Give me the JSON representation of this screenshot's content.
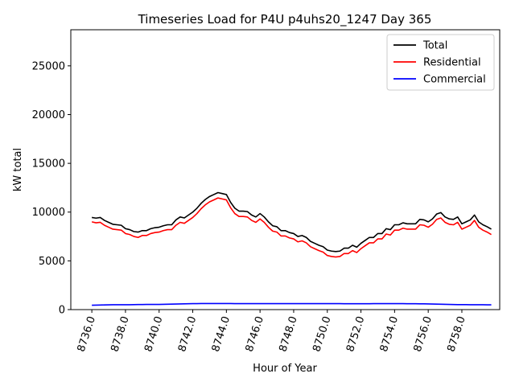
{
  "chart_data": {
    "type": "line",
    "title": "Timeseries Load for P4U p4uhs20_1247  Day 365",
    "xlabel": "Hour of Year",
    "ylabel": "kW total",
    "xlim": [
      8734.75,
      8760.25
    ],
    "ylim": [
      0,
      28700
    ],
    "xticks": [
      8736,
      8738,
      8740,
      8742,
      8744,
      8746,
      8748,
      8750,
      8752,
      8754,
      8756,
      8758
    ],
    "xtick_labels": [
      "8736.0",
      "8738.0",
      "8740.0",
      "8742.0",
      "8744.0",
      "8746.0",
      "8748.0",
      "8750.0",
      "8752.0",
      "8754.0",
      "8756.0",
      "8758.0"
    ],
    "yticks": [
      0,
      5000,
      10000,
      15000,
      20000,
      25000
    ],
    "ytick_labels": [
      "0",
      "5000",
      "10000",
      "15000",
      "20000",
      "25000"
    ],
    "grid": false,
    "legend_position": "top-right",
    "x_start": 8736.0,
    "x_step": 0.25,
    "series": [
      {
        "name": "Total",
        "color": "#000000",
        "values": [
          9450,
          9380,
          9450,
          9150,
          8950,
          8750,
          8700,
          8650,
          8300,
          8200,
          8000,
          7950,
          8100,
          8100,
          8300,
          8400,
          8450,
          8600,
          8700,
          8700,
          9200,
          9500,
          9400,
          9700,
          10000,
          10400,
          10900,
          11300,
          11600,
          11800,
          12000,
          11900,
          11800,
          11000,
          10400,
          10100,
          10100,
          10050,
          9700,
          9500,
          9850,
          9500,
          9000,
          8600,
          8500,
          8100,
          8100,
          7900,
          7800,
          7500,
          7600,
          7400,
          7000,
          6800,
          6600,
          6450,
          6100,
          6000,
          5950,
          6000,
          6300,
          6300,
          6600,
          6400,
          6800,
          7100,
          7400,
          7400,
          7800,
          7800,
          8300,
          8200,
          8700,
          8700,
          8900,
          8800,
          8800,
          8800,
          9250,
          9200,
          9000,
          9300,
          9800,
          9950,
          9500,
          9300,
          9250,
          9500,
          8800,
          9000,
          9200,
          9700,
          9000,
          8700,
          8500,
          8250
        ]
      },
      {
        "name": "Residential",
        "color": "#ff0000",
        "values": [
          9000,
          8900,
          8950,
          8650,
          8450,
          8250,
          8200,
          8150,
          7800,
          7700,
          7500,
          7400,
          7600,
          7600,
          7800,
          7900,
          7950,
          8100,
          8200,
          8200,
          8650,
          8950,
          8850,
          9150,
          9450,
          9850,
          10350,
          10750,
          11050,
          11250,
          11450,
          11350,
          11250,
          10450,
          9850,
          9550,
          9550,
          9500,
          9150,
          8950,
          9300,
          8950,
          8450,
          8050,
          7950,
          7550,
          7550,
          7350,
          7250,
          6950,
          7050,
          6850,
          6450,
          6250,
          6050,
          5900,
          5550,
          5450,
          5400,
          5450,
          5750,
          5750,
          6050,
          5850,
          6250,
          6550,
          6850,
          6850,
          7250,
          7250,
          7750,
          7650,
          8150,
          8150,
          8350,
          8250,
          8250,
          8250,
          8700,
          8650,
          8450,
          8750,
          9250,
          9400,
          8950,
          8750,
          8700,
          8950,
          8250,
          8450,
          8650,
          9150,
          8450,
          8150,
          7950,
          7700
        ]
      },
      {
        "name": "Commercial",
        "color": "#0000ff",
        "values": [
          450,
          460,
          470,
          480,
          490,
          500,
          500,
          500,
          500,
          500,
          510,
          520,
          520,
          530,
          530,
          530,
          530,
          540,
          550,
          560,
          570,
          580,
          590,
          600,
          610,
          610,
          620,
          620,
          620,
          620,
          620,
          620,
          620,
          620,
          610,
          610,
          610,
          610,
          610,
          610,
          610,
          610,
          610,
          610,
          610,
          610,
          610,
          610,
          610,
          610,
          610,
          610,
          610,
          610,
          610,
          610,
          610,
          610,
          610,
          610,
          600,
          600,
          600,
          600,
          600,
          600,
          600,
          610,
          610,
          610,
          610,
          610,
          610,
          610,
          610,
          600,
          600,
          600,
          590,
          590,
          580,
          570,
          560,
          550,
          540,
          530,
          520,
          510,
          510,
          510,
          500,
          500,
          500,
          500,
          490,
          490
        ]
      }
    ]
  }
}
